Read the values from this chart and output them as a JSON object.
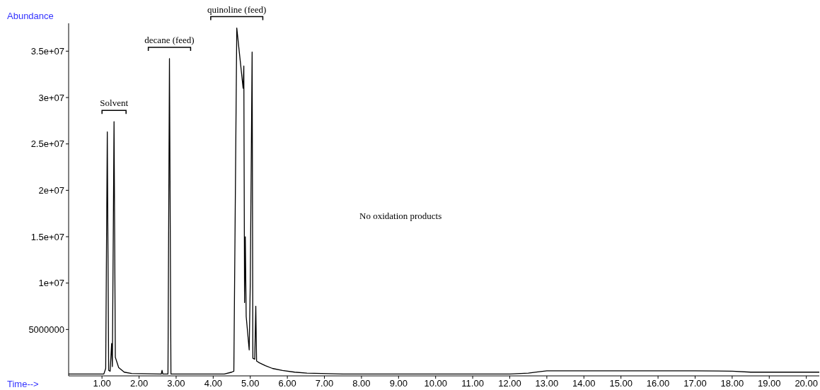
{
  "chart_data": {
    "type": "line",
    "xlabel": "Time-->",
    "ylabel": "Abundance",
    "x": [
      0.1,
      1.05,
      1.1,
      1.143,
      1.18,
      1.22,
      1.26,
      1.28,
      1.325,
      1.36,
      1.45,
      1.6,
      1.8,
      2.6,
      2.62,
      2.64,
      2.78,
      2.82,
      2.86,
      4.3,
      4.5,
      4.557,
      4.636,
      4.807,
      4.826,
      4.846,
      4.866,
      4.89,
      4.971,
      5.0,
      5.05,
      5.07,
      5.12,
      5.149,
      5.17,
      5.25,
      5.41,
      5.6,
      5.87,
      6.2,
      6.53,
      7.5,
      12.0,
      12.5,
      13.0,
      15.0,
      17.0,
      18.0,
      18.5,
      20.35
    ],
    "series": [
      {
        "color": "#000000",
        "values": [
          200000,
          200000,
          800000,
          26300000,
          600000,
          500000,
          3500000,
          1000000,
          27400000,
          2000000,
          900000,
          400000,
          250000,
          200000,
          600000,
          200000,
          200000,
          34200000,
          200000,
          200000,
          400000,
          500000,
          37500000,
          31000000,
          33400000,
          7900000,
          15000000,
          6400000,
          2800000,
          10000000,
          34900000,
          1900000,
          1800000,
          7500000,
          1600000,
          1400000,
          1100000,
          800000,
          580000,
          400000,
          300000,
          200000,
          200000,
          300000,
          550000,
          550000,
          550000,
          500000,
          400000,
          400000
        ]
      }
    ],
    "xlim": [
      0.1,
      20.35
    ],
    "xticks": [
      {
        "value": 1,
        "label": "1.00"
      },
      {
        "value": 2,
        "label": "2.00"
      },
      {
        "value": 3,
        "label": "3.00"
      },
      {
        "value": 4,
        "label": "4.00"
      },
      {
        "value": 5,
        "label": "5.00"
      },
      {
        "value": 6,
        "label": "6.00"
      },
      {
        "value": 7,
        "label": "7.00"
      },
      {
        "value": 8,
        "label": "8.00"
      },
      {
        "value": 9,
        "label": "9.00"
      },
      {
        "value": 10,
        "label": "10.00"
      },
      {
        "value": 11,
        "label": "11.00"
      },
      {
        "value": 12,
        "label": "12.00"
      },
      {
        "value": 13,
        "label": "13.00"
      },
      {
        "value": 14,
        "label": "14.00"
      },
      {
        "value": 15,
        "label": "15.00"
      },
      {
        "value": 16,
        "label": "16.00"
      },
      {
        "value": 17,
        "label": "17.00"
      },
      {
        "value": 18,
        "label": "18.00"
      },
      {
        "value": 19,
        "label": "19.00"
      },
      {
        "value": 20,
        "label": "20.00"
      }
    ],
    "ylim": [
      0,
      38000000
    ],
    "yticks": [
      {
        "value": 5000000,
        "label": "5000000"
      },
      {
        "value": 10000000,
        "label": "1e+07"
      },
      {
        "value": 15000000,
        "label": "1.5e+07"
      },
      {
        "value": 20000000,
        "label": "2e+07"
      },
      {
        "value": 25000000,
        "label": "2.5e+07"
      },
      {
        "value": 30000000,
        "label": "3e+07"
      },
      {
        "value": 35000000,
        "label": "3.5e+07"
      }
    ],
    "grid": false,
    "legend": false,
    "marker": "none",
    "line_style": "solid",
    "annotations": [
      {
        "text": "Solvent",
        "x": 1.325,
        "y": 27400000
      },
      {
        "text": "decane (feed)",
        "x": 2.82,
        "y": 34200000
      },
      {
        "text": "quinoline (feed)",
        "x": 4.636,
        "y": 37500000
      },
      "No oxidation products"
    ]
  }
}
